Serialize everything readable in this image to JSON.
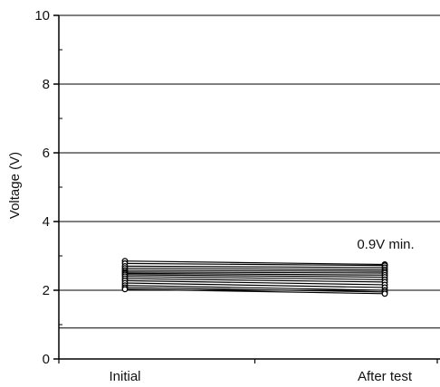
{
  "chart_data": {
    "type": "line",
    "title": "",
    "xlabel": "",
    "ylabel": "Voltage (V)",
    "categories": [
      "Initial",
      "After test"
    ],
    "ylim": [
      0,
      10
    ],
    "yticks": [
      0,
      2,
      4,
      6,
      8,
      10
    ],
    "grid": "horizontal",
    "threshold": {
      "value": 0.9,
      "label": "0.9V min."
    },
    "series": [
      {
        "values": [
          2.85,
          2.75
        ]
      },
      {
        "values": [
          2.78,
          2.72
        ]
      },
      {
        "values": [
          2.7,
          2.66
        ]
      },
      {
        "values": [
          2.64,
          2.6
        ]
      },
      {
        "values": [
          2.58,
          2.55
        ]
      },
      {
        "values": [
          2.53,
          2.5
        ]
      },
      {
        "values": [
          2.49,
          2.44
        ]
      },
      {
        "values": [
          2.45,
          2.38
        ]
      },
      {
        "values": [
          2.4,
          2.31
        ]
      },
      {
        "values": [
          2.34,
          2.24
        ]
      },
      {
        "values": [
          2.28,
          2.16
        ]
      },
      {
        "values": [
          2.21,
          2.08
        ]
      },
      {
        "values": [
          2.14,
          2.0
        ]
      },
      {
        "values": [
          2.08,
          1.95
        ]
      },
      {
        "values": [
          2.03,
          1.9
        ]
      }
    ],
    "colors": {
      "line": "#000000",
      "marker_fill": "#ffffff",
      "grid": "#000000",
      "threshold": "#000000"
    }
  }
}
